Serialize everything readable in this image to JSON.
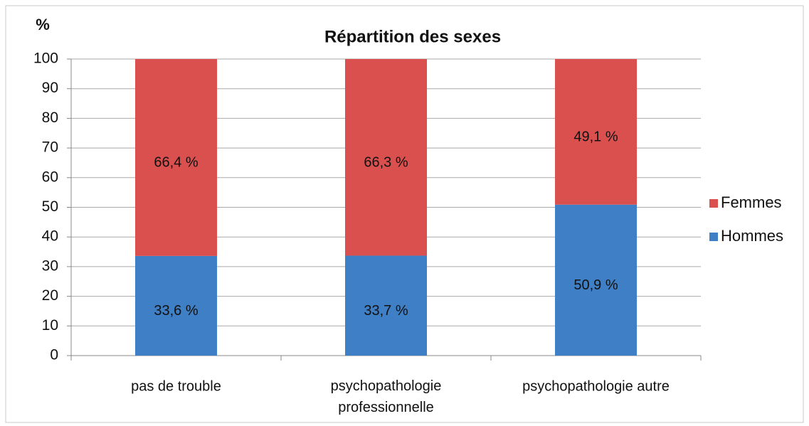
{
  "chart_data": {
    "type": "stacked_bar",
    "title": "Répartition des sexes",
    "y_label": "%",
    "categories": [
      "pas de trouble",
      "psychopathologie\nprofessionnelle",
      "psychopathologie autre"
    ],
    "series": [
      {
        "name": "Hommes",
        "color": "#3f7fc6",
        "values": [
          33.6,
          33.7,
          50.9
        ],
        "value_labels": [
          "33,6 %",
          "33,7 %",
          "50,9 %"
        ]
      },
      {
        "name": "Femmes",
        "color": "#d9504f",
        "values": [
          66.4,
          66.3,
          49.1
        ],
        "value_labels": [
          "66,4 %",
          "66,3 %",
          "49,1 %"
        ]
      }
    ],
    "ylim": [
      0,
      100
    ],
    "yticks": [
      0,
      10,
      20,
      30,
      40,
      50,
      60,
      70,
      80,
      90,
      100
    ],
    "grid": true,
    "legend": "right"
  }
}
